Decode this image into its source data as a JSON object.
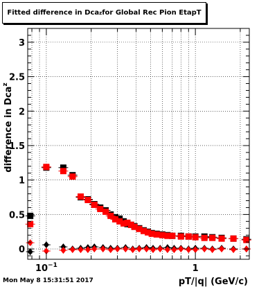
{
  "title": {
    "prefix": "Fitted difference in Dca",
    "subscript": "z",
    "suffix": " for Global Rec Pion EtapT"
  },
  "footer": {
    "timestamp": "Mon May  8 15:31:51 2017"
  },
  "colors": {
    "black_series": "#000000",
    "red_series": "#ff0000",
    "grid": "#000000",
    "frame": "#000000"
  },
  "chart_data": {
    "type": "scatter",
    "xlabel": "pT/|q| (GeV/c)",
    "ylabel": "difference in Dca",
    "ylabel_subscript": "z",
    "x_scale": "log",
    "xlim": [
      0.075,
      2.3
    ],
    "ylim": [
      -0.15,
      3.2
    ],
    "grid": true,
    "y_ticks": [
      0,
      0.5,
      1,
      1.5,
      2,
      2.5,
      3
    ],
    "y_tick_labels": [
      "0",
      "0.5",
      "1",
      "1.5",
      "2",
      "2.5",
      "3"
    ],
    "x_ticks": [
      0.1,
      1
    ],
    "x_tick_labels": [
      "10^-1",
      "1"
    ],
    "series": [
      {
        "color": "#000000",
        "marker": "square",
        "x": [
          0.078,
          0.1,
          0.13,
          0.15,
          0.17,
          0.19,
          0.21,
          0.23,
          0.25,
          0.27,
          0.29,
          0.31,
          0.33,
          0.35,
          0.37,
          0.39,
          0.42,
          0.45,
          0.48,
          0.51,
          0.55,
          0.6,
          0.65,
          0.7,
          0.8,
          0.9,
          1.0,
          1.15,
          1.3,
          1.5,
          1.8,
          2.2
        ],
        "y": [
          0.48,
          1.18,
          1.18,
          1.07,
          0.75,
          0.72,
          0.65,
          0.6,
          0.56,
          0.5,
          0.46,
          0.44,
          0.4,
          0.36,
          0.35,
          0.33,
          0.3,
          0.27,
          0.25,
          0.23,
          0.22,
          0.21,
          0.2,
          0.19,
          0.19,
          0.18,
          0.18,
          0.18,
          0.17,
          0.16,
          0.15,
          0.14
        ]
      },
      {
        "color": "#ff0000",
        "marker": "square",
        "x": [
          0.078,
          0.1,
          0.13,
          0.15,
          0.17,
          0.19,
          0.21,
          0.23,
          0.25,
          0.27,
          0.29,
          0.31,
          0.33,
          0.35,
          0.37,
          0.39,
          0.42,
          0.45,
          0.48,
          0.51,
          0.55,
          0.6,
          0.65,
          0.7,
          0.8,
          0.9,
          1.0,
          1.15,
          1.3,
          1.5,
          1.8,
          2.2
        ],
        "y": [
          0.36,
          1.19,
          1.13,
          1.05,
          0.76,
          0.71,
          0.64,
          0.58,
          0.54,
          0.48,
          0.43,
          0.4,
          0.37,
          0.38,
          0.35,
          0.32,
          0.29,
          0.26,
          0.24,
          0.22,
          0.21,
          0.2,
          0.19,
          0.19,
          0.18,
          0.18,
          0.17,
          0.16,
          0.16,
          0.15,
          0.15,
          0.13
        ]
      },
      {
        "color": "#000000",
        "marker": "diamond",
        "x": [
          0.078,
          0.1,
          0.13,
          0.15,
          0.17,
          0.19,
          0.21,
          0.24,
          0.27,
          0.3,
          0.34,
          0.38,
          0.42,
          0.47,
          0.52,
          0.58,
          0.65,
          0.72,
          0.8,
          0.9,
          1.0,
          1.15,
          1.3,
          1.5,
          1.8,
          2.2
        ],
        "y": [
          -0.04,
          0.06,
          0.03,
          0.0,
          0.01,
          0.02,
          0.03,
          0.02,
          0.01,
          0.01,
          0.02,
          0.0,
          0.01,
          0.02,
          0.01,
          0.01,
          0.02,
          0.01,
          0.01,
          0.0,
          0.01,
          0.01,
          0.0,
          0.01,
          0.0,
          0.0
        ]
      },
      {
        "color": "#ff0000",
        "marker": "diamond",
        "x": [
          0.078,
          0.1,
          0.13,
          0.15,
          0.17,
          0.19,
          0.21,
          0.24,
          0.27,
          0.3,
          0.34,
          0.38,
          0.42,
          0.47,
          0.52,
          0.58,
          0.65,
          0.72,
          0.8,
          0.9,
          1.0,
          1.15,
          1.3,
          1.5,
          1.8,
          2.2
        ],
        "y": [
          0.09,
          -0.03,
          -0.02,
          -0.01,
          -0.01,
          -0.01,
          0.0,
          0.0,
          -0.01,
          0.0,
          0.0,
          -0.01,
          0.0,
          0.0,
          -0.01,
          0.0,
          -0.01,
          -0.01,
          0.0,
          -0.01,
          -0.01,
          0.0,
          -0.01,
          0.0,
          -0.01,
          0.0
        ]
      }
    ]
  }
}
